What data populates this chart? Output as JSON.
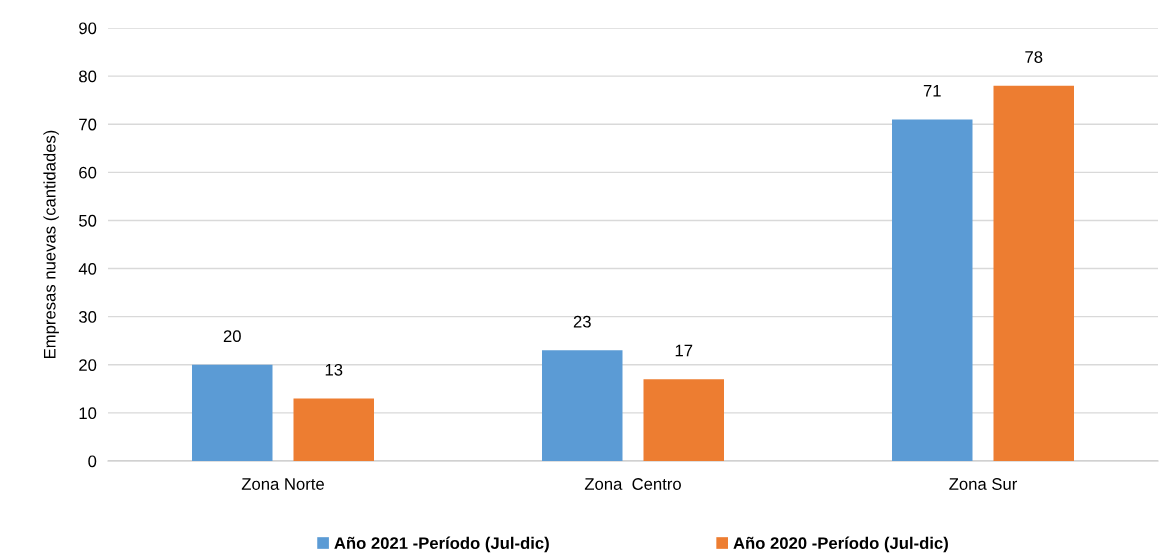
{
  "chart_data": {
    "type": "bar",
    "ylabel": "Empresas nuevas (cantidades)",
    "categories": [
      "Zona Norte",
      "Zona  Centro",
      "Zona Sur"
    ],
    "series": [
      {
        "name": "Año 2021 -Período (Jul-dic)",
        "color": "#5b9bd5",
        "values": [
          20,
          23,
          71
        ]
      },
      {
        "name": "Año 2020 -Período (Jul-dic)",
        "color": "#ed7d31",
        "values": [
          13,
          17,
          78
        ]
      }
    ],
    "ylim": [
      0,
      90
    ],
    "yticks": [
      0,
      10,
      20,
      30,
      40,
      50,
      60,
      70,
      80,
      90
    ],
    "grid": "y",
    "legend": "bottom",
    "data_labels": true
  }
}
